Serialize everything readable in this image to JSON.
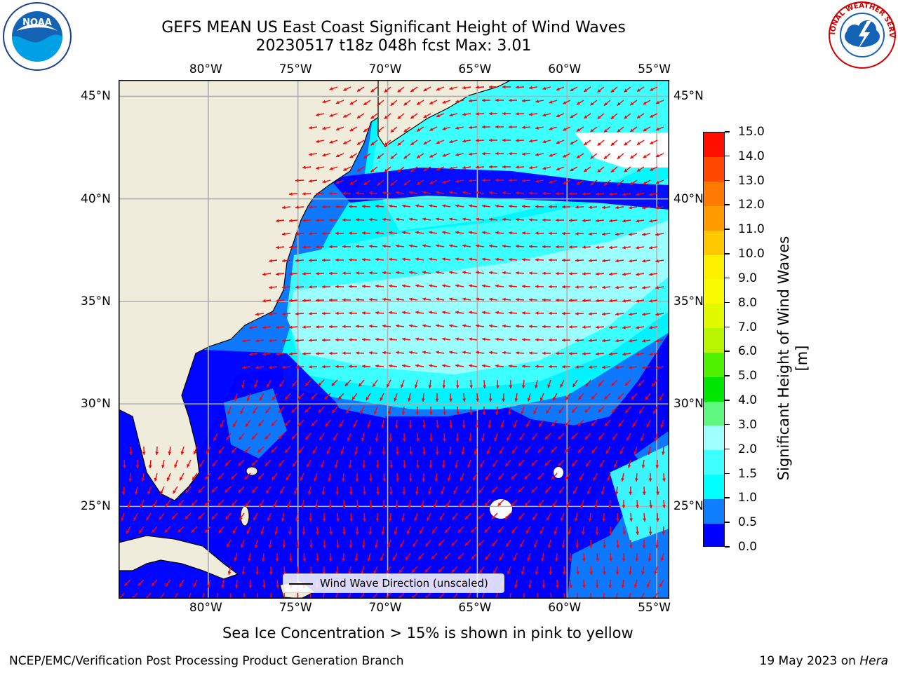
{
  "title": {
    "line1": "GEFS MEAN US East Coast Significant Height of Wind Waves",
    "line2": "20230517 t18z 048h fcst   Max: 3.01"
  },
  "map": {
    "lon_ticks": [
      "80°W",
      "75°W",
      "70°W",
      "65°W",
      "60°W",
      "55°W"
    ],
    "lat_ticks": [
      "45°N",
      "40°N",
      "35°N",
      "30°N",
      "25°N"
    ],
    "lon_range": [
      -85,
      -54.3
    ],
    "lat_range": [
      20.5,
      45.8
    ],
    "land_color": "#efecdc",
    "grid": true,
    "arrow_color": "#ff0000"
  },
  "legend": {
    "label": "Wind Wave Direction (unscaled)"
  },
  "colorbar": {
    "title": "Significant Height of Wind Waves [m]",
    "levels": [
      "0.0",
      "0.5",
      "1.0",
      "1.5",
      "2.0",
      "3.0",
      "4.0",
      "5.0",
      "6.0",
      "7.0",
      "8.0",
      "9.0",
      "10.0",
      "11.0",
      "12.0",
      "13.0",
      "14.0",
      "15.0"
    ],
    "colors": [
      "#0000ff",
      "#0f7fff",
      "#00ffff",
      "#3fffff",
      "#a0ffff",
      "#5ff77f",
      "#00e600",
      "#4ff000",
      "#b8f500",
      "#e2fa00",
      "#fafa00",
      "#fff000",
      "#ffc800",
      "#ff9a00",
      "#ff7a00",
      "#ff4800",
      "#ff0f00"
    ]
  },
  "sea_ice_note": "Sea Ice Concentration > 15% is shown in pink to yellow",
  "footer": {
    "left": "NCEP/EMC/Verification Post Processing Product Generation Branch",
    "right_date": "19 May 2023 on ",
    "right_host": "Hera"
  },
  "logos": {
    "noaa": "NOAA",
    "nws": "NATIONAL WEATHER SERVICE"
  }
}
